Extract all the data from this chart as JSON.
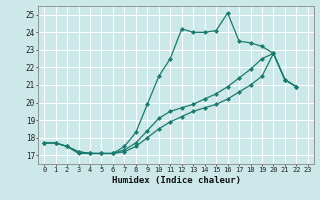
{
  "xlabel": "Humidex (Indice chaleur)",
  "bg_color": "#cce8e8",
  "grid_color": "#b0d0d0",
  "line_color": "#1a7a6e",
  "xlim": [
    -0.5,
    23.5
  ],
  "ylim": [
    16.5,
    25.5
  ],
  "xticks": [
    0,
    1,
    2,
    3,
    4,
    5,
    6,
    7,
    8,
    9,
    10,
    11,
    12,
    13,
    14,
    15,
    16,
    17,
    18,
    19,
    20,
    21,
    22,
    23
  ],
  "yticks": [
    17,
    18,
    19,
    20,
    21,
    22,
    23,
    24,
    25
  ],
  "line1_x": [
    0,
    1,
    2,
    3,
    4,
    5,
    6,
    7,
    8,
    9,
    10,
    11,
    12,
    13,
    14,
    15,
    16,
    17,
    18,
    19,
    20,
    21,
    22
  ],
  "line1_y": [
    17.7,
    17.7,
    17.5,
    17.1,
    17.1,
    17.1,
    17.1,
    17.5,
    18.3,
    19.9,
    21.5,
    22.5,
    24.2,
    24.0,
    24.0,
    24.1,
    25.1,
    23.5,
    23.4,
    23.2,
    22.8,
    21.3,
    20.9
  ],
  "line2_x": [
    0,
    1,
    2,
    3,
    4,
    5,
    6,
    7,
    8,
    9,
    10,
    11,
    12,
    13,
    14,
    15,
    16,
    17,
    18,
    19,
    20,
    21,
    22
  ],
  "line2_y": [
    17.7,
    17.7,
    17.5,
    17.2,
    17.1,
    17.1,
    17.1,
    17.3,
    17.7,
    18.4,
    19.1,
    19.5,
    19.7,
    19.9,
    20.2,
    20.5,
    20.9,
    21.4,
    21.9,
    22.5,
    22.8,
    21.3,
    20.9
  ],
  "line3_x": [
    0,
    1,
    2,
    3,
    4,
    5,
    6,
    7,
    8,
    9,
    10,
    11,
    12,
    13,
    14,
    15,
    16,
    17,
    18,
    19,
    20,
    21,
    22
  ],
  "line3_y": [
    17.7,
    17.7,
    17.5,
    17.2,
    17.1,
    17.1,
    17.1,
    17.2,
    17.5,
    18.0,
    18.5,
    18.9,
    19.2,
    19.5,
    19.7,
    19.9,
    20.2,
    20.6,
    21.0,
    21.5,
    22.8,
    21.3,
    20.9
  ]
}
